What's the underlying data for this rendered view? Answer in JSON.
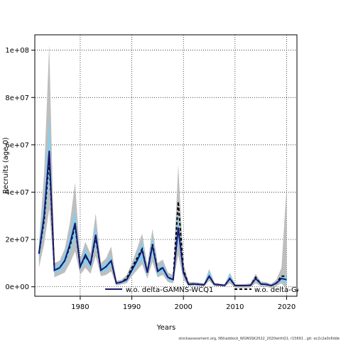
{
  "chart_data": {
    "type": "line",
    "title": "",
    "xlabel": "Years",
    "ylabel": "Recruits (age 0)",
    "xlim": [
      1971.2,
      2022
    ],
    "ylim": [
      -4000000,
      106500000
    ],
    "x_ticks": [
      1980,
      1990,
      2000,
      2010,
      2020
    ],
    "x_tick_labels": [
      "1980",
      "1990",
      "2000",
      "2010",
      "2020"
    ],
    "y_ticks": [
      0,
      20000000,
      40000000,
      60000000,
      80000000,
      100000000
    ],
    "y_tick_labels": [
      "0e+00",
      "2e+07",
      "4e+07",
      "6e+07",
      "8e+07",
      "1e+08"
    ],
    "grid": true,
    "grid_style": "dotted",
    "legend_position": "bottom",
    "colors": {
      "band_outer": "#bebebe",
      "band_inner": "#87ceeb",
      "series_main": "#191970",
      "series_compare": "#000000",
      "axis": "#000000"
    },
    "x": [
      1972,
      1973,
      1974,
      1975,
      1976,
      1977,
      1978,
      1979,
      1980,
      1981,
      1982,
      1983,
      1984,
      1985,
      1986,
      1987,
      1988,
      1989,
      1990,
      1991,
      1992,
      1993,
      1994,
      1995,
      1996,
      1997,
      1998,
      1999,
      2000,
      2001,
      2002,
      2003,
      2004,
      2005,
      2006,
      2007,
      2008,
      2009,
      2010,
      2011,
      2012,
      2013,
      2014,
      2015,
      2016,
      2017,
      2018,
      2019,
      2020
    ],
    "series": [
      {
        "name": "w.o. delta-GAMNS-WCQ1",
        "style": "solid",
        "values": [
          14000000,
          30000000,
          57500000,
          7000000,
          8000000,
          11000000,
          18000000,
          27000000,
          8500000,
          13500000,
          9500000,
          22000000,
          7000000,
          8500000,
          11000000,
          1500000,
          2000000,
          3000000,
          7000000,
          11000000,
          15500000,
          6000000,
          17500000,
          6500000,
          8000000,
          4000000,
          3000000,
          25000000,
          6000000,
          1000000,
          1200000,
          1000000,
          800000,
          4500000,
          1000000,
          800000,
          600000,
          3500000,
          500000,
          500000,
          500000,
          600000,
          3500000,
          1200000,
          1000000,
          500000,
          1500000,
          3500000,
          3000000
        ]
      },
      {
        "name": "w.o. delta-GAMNS",
        "style": "dashed",
        "values": [
          14000000,
          28000000,
          54000000,
          7000000,
          8000000,
          11000000,
          17000000,
          26000000,
          8500000,
          13000000,
          9500000,
          21000000,
          7000000,
          8500000,
          11000000,
          1500000,
          2000000,
          3500000,
          8000000,
          12000000,
          16000000,
          6000000,
          18000000,
          7000000,
          8000000,
          4000000,
          3000000,
          36000000,
          7000000,
          1000000,
          1200000,
          1000000,
          800000,
          4500000,
          1000000,
          800000,
          600000,
          3500000,
          500000,
          500000,
          500000,
          600000,
          4000000,
          1200000,
          1000000,
          500000,
          1500000,
          4500000,
          4500000
        ]
      }
    ],
    "band_outer": {
      "lower": [
        8000000,
        18000000,
        33000000,
        4000000,
        5000000,
        6000000,
        10000000,
        15000000,
        5000000,
        8000000,
        5500000,
        13000000,
        4500000,
        5000000,
        6500000,
        500000,
        1000000,
        1500000,
        4500000,
        7000000,
        9500000,
        3500000,
        10500000,
        4000000,
        5000000,
        2000000,
        1500000,
        13500000,
        3000000,
        300000,
        400000,
        300000,
        200000,
        2500000,
        300000,
        200000,
        100000,
        1500000,
        -500000,
        -500000,
        -500000,
        -300000,
        1500000,
        200000,
        0,
        -500000,
        300000,
        1500000,
        -1000000
      ],
      "upper": [
        18000000,
        48000000,
        102500000,
        10000000,
        11000000,
        16000000,
        27000000,
        44000000,
        12000000,
        19000000,
        14000000,
        31000000,
        10000000,
        12000000,
        17000000,
        2500000,
        3000000,
        5000000,
        10000000,
        16000000,
        22500000,
        9000000,
        24500000,
        10000000,
        11500000,
        6000000,
        5000000,
        51500000,
        10000000,
        2000000,
        2000000,
        1800000,
        1400000,
        7500000,
        1700000,
        1400000,
        1000000,
        6000000,
        1200000,
        1200000,
        1200000,
        1500000,
        5500000,
        2200000,
        2000000,
        1200000,
        3000000,
        8000000,
        42500000
      ]
    },
    "band_inner": {
      "lower": [
        11000000,
        24000000,
        45000000,
        5500000,
        6500000,
        8500000,
        14000000,
        21000000,
        6800000,
        10500000,
        7500000,
        17500000,
        5700000,
        6700000,
        8700000,
        900000,
        1400000,
        2200000,
        5700000,
        8500000,
        11500000,
        4500000,
        13500000,
        5000000,
        6300000,
        2900000,
        2200000,
        19000000,
        4500000,
        600000,
        800000,
        600000,
        500000,
        3500000,
        600000,
        500000,
        350000,
        2500000,
        200000,
        200000,
        200000,
        300000,
        2500000,
        700000,
        500000,
        100000,
        900000,
        2500000,
        1000000
      ],
      "upper": [
        17000000,
        37000000,
        72000000,
        8500000,
        9500000,
        13500000,
        22000000,
        33000000,
        10300000,
        16300000,
        11500000,
        26500000,
        8300000,
        10300000,
        13300000,
        2100000,
        2600000,
        3800000,
        8300000,
        13500000,
        19500000,
        7500000,
        21500000,
        8000000,
        9700000,
        5100000,
        3800000,
        31000000,
        7500000,
        1400000,
        1600000,
        1400000,
        1100000,
        7000000,
        1400000,
        1100000,
        850000,
        5500000,
        800000,
        800000,
        800000,
        900000,
        4500000,
        1700000,
        1500000,
        900000,
        2100000,
        4500000,
        5000000
      ]
    },
    "footnote": "stockassessment.org, NShaddock_WGNSSK2022_2020withQ1, r15691 , git: ec2c2a0c6dde"
  }
}
